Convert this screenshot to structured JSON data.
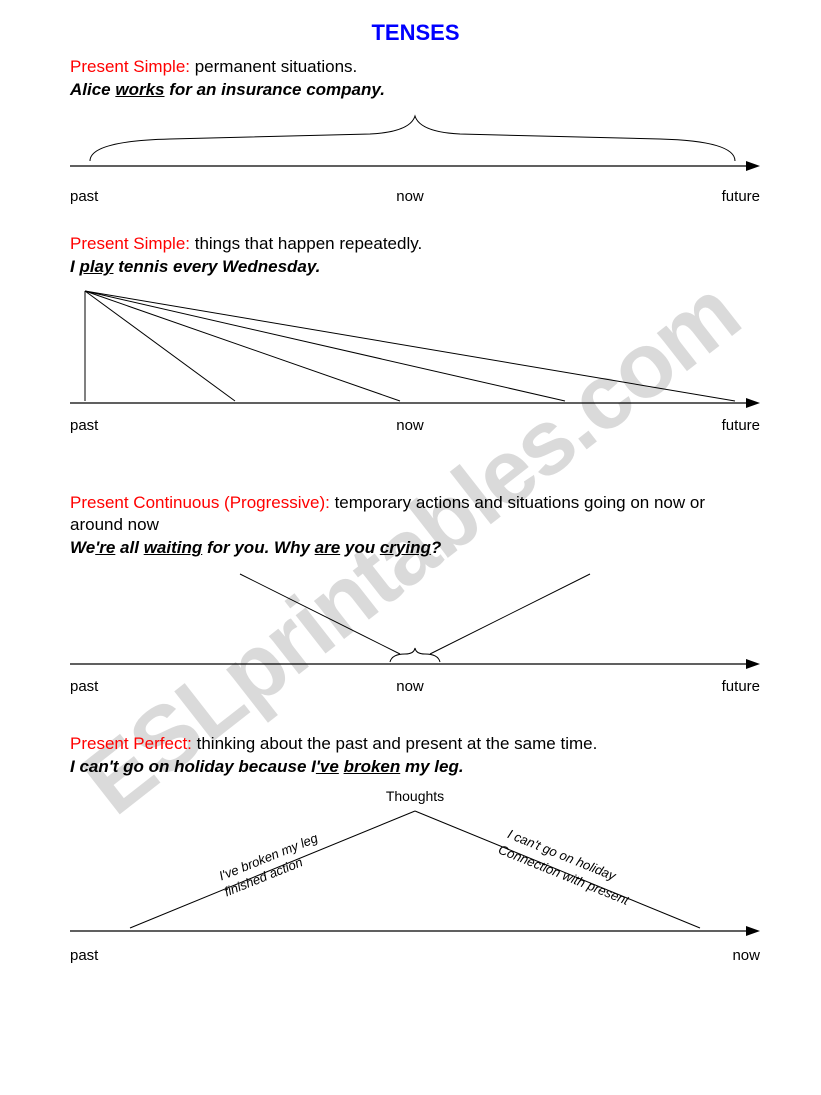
{
  "title": "TENSES",
  "title_color": "#0000ff",
  "tense_color": "#ff0000",
  "text_color": "#000000",
  "watermark": "ESLprintables.com",
  "sections": [
    {
      "tense": "Present Simple:",
      "desc": " permanent situations.",
      "example_pre": "Alice ",
      "example_u": "works",
      "example_post": " for an insurance company.",
      "axis": {
        "left": "past",
        "mid": "now",
        "right": "future"
      }
    },
    {
      "tense": "Present Simple:",
      "desc": " things that happen repeatedly.",
      "example_pre": "I ",
      "example_u": "play",
      "example_post": " tennis every Wednesday.",
      "axis": {
        "left": "past",
        "mid": "now",
        "right": "future"
      }
    },
    {
      "tense": "Present Continuous (Progressive):",
      "desc": " temporary actions and situations going on now or around now",
      "example_html": "We<span class='u'>'re</span> all <span class='u'>waiting</span> for you. Why <span class='u'>are</span> you <span class='u'>crying</span>?",
      "axis": {
        "left": "past",
        "mid": "now",
        "right": "future"
      }
    },
    {
      "tense": "Present Perfect:",
      "desc": " thinking about the past and present at the same time.",
      "example_html": "I can't go on holiday because I<span class='u'>'ve</span> <span class='u'>broken</span> my leg.",
      "thoughts": "Thoughts",
      "left_line1": "I've broken my leg",
      "left_line2": "finished action",
      "right_line1": "I can't go on holiday",
      "right_line2": "Connection with present",
      "axis": {
        "left": "past",
        "mid": "",
        "right": "now"
      }
    }
  ]
}
